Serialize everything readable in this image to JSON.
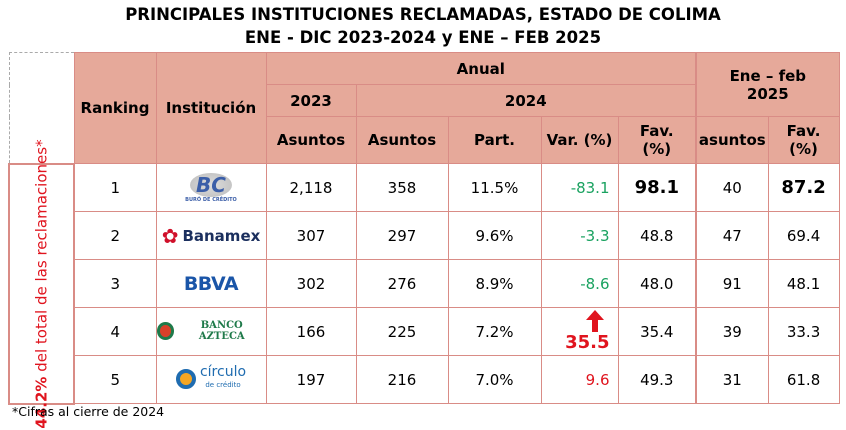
{
  "title_line1": "PRINCIPALES INSTITUCIONES RECLAMADAS, ESTADO DE COLIMA",
  "title_line2": "ENE - DIC 2023-2024 y ENE – FEB 2025",
  "chart_data": {
    "type": "table",
    "headers": {
      "ranking": "Ranking",
      "institucion": "Institución",
      "anual": "Anual",
      "y2023": "2023",
      "y2024": "2024",
      "enefeb": "Ene – feb 2025",
      "asuntos": "Asuntos",
      "part": "Part.",
      "var": "Var. (%)",
      "fav": "Fav. (%)",
      "asuntos_lc": "asuntos"
    },
    "side_label_bold": "44.2%",
    "side_label_rest": " del total de las reclamaciones*",
    "rows": [
      {
        "ranking": "1",
        "institucion": "Buró de Crédito",
        "logo_text": "BC",
        "logo_sub": "BURÓ DE CRÉDITO",
        "asuntos_2023": "2,118",
        "asuntos_2024": "358",
        "part": "11.5%",
        "var": "-83.1",
        "var_color": "green",
        "fav_2024": "98.1",
        "asuntos_2025": "40",
        "fav_2025": "87.2",
        "bold": true
      },
      {
        "ranking": "2",
        "institucion": "Banamex",
        "logo_text": "Banamex",
        "asuntos_2023": "307",
        "asuntos_2024": "297",
        "part": "9.6%",
        "var": "-3.3",
        "var_color": "green",
        "fav_2024": "48.8",
        "asuntos_2025": "47",
        "fav_2025": "69.4"
      },
      {
        "ranking": "3",
        "institucion": "BBVA",
        "logo_text": "BBVA",
        "asuntos_2023": "302",
        "asuntos_2024": "276",
        "part": "8.9%",
        "var": "-8.6",
        "var_color": "green",
        "fav_2024": "48.0",
        "asuntos_2025": "91",
        "fav_2025": "48.1"
      },
      {
        "ranking": "4",
        "institucion": "Banco Azteca",
        "logo_text": "BANCO AZTECA",
        "asuntos_2023": "166",
        "asuntos_2024": "225",
        "part": "7.2%",
        "var": "35.5",
        "var_color": "red",
        "var_icon": "arrow-up-icon",
        "fav_2024": "35.4",
        "asuntos_2025": "39",
        "fav_2025": "33.3"
      },
      {
        "ranking": "5",
        "institucion": "Círculo de Crédito",
        "logo_text": "círculo",
        "logo_sub": "de crédito",
        "asuntos_2023": "197",
        "asuntos_2024": "216",
        "part": "7.0%",
        "var": "9.6",
        "var_color": "red",
        "fav_2024": "49.3",
        "asuntos_2025": "31",
        "fav_2025": "61.8"
      }
    ]
  },
  "footnote": "*Cifras al cierre de 2024",
  "colors": {
    "header_bg": "#e6a99a",
    "border": "#d98c86",
    "green": "#1aa260",
    "red": "#e0141e"
  }
}
